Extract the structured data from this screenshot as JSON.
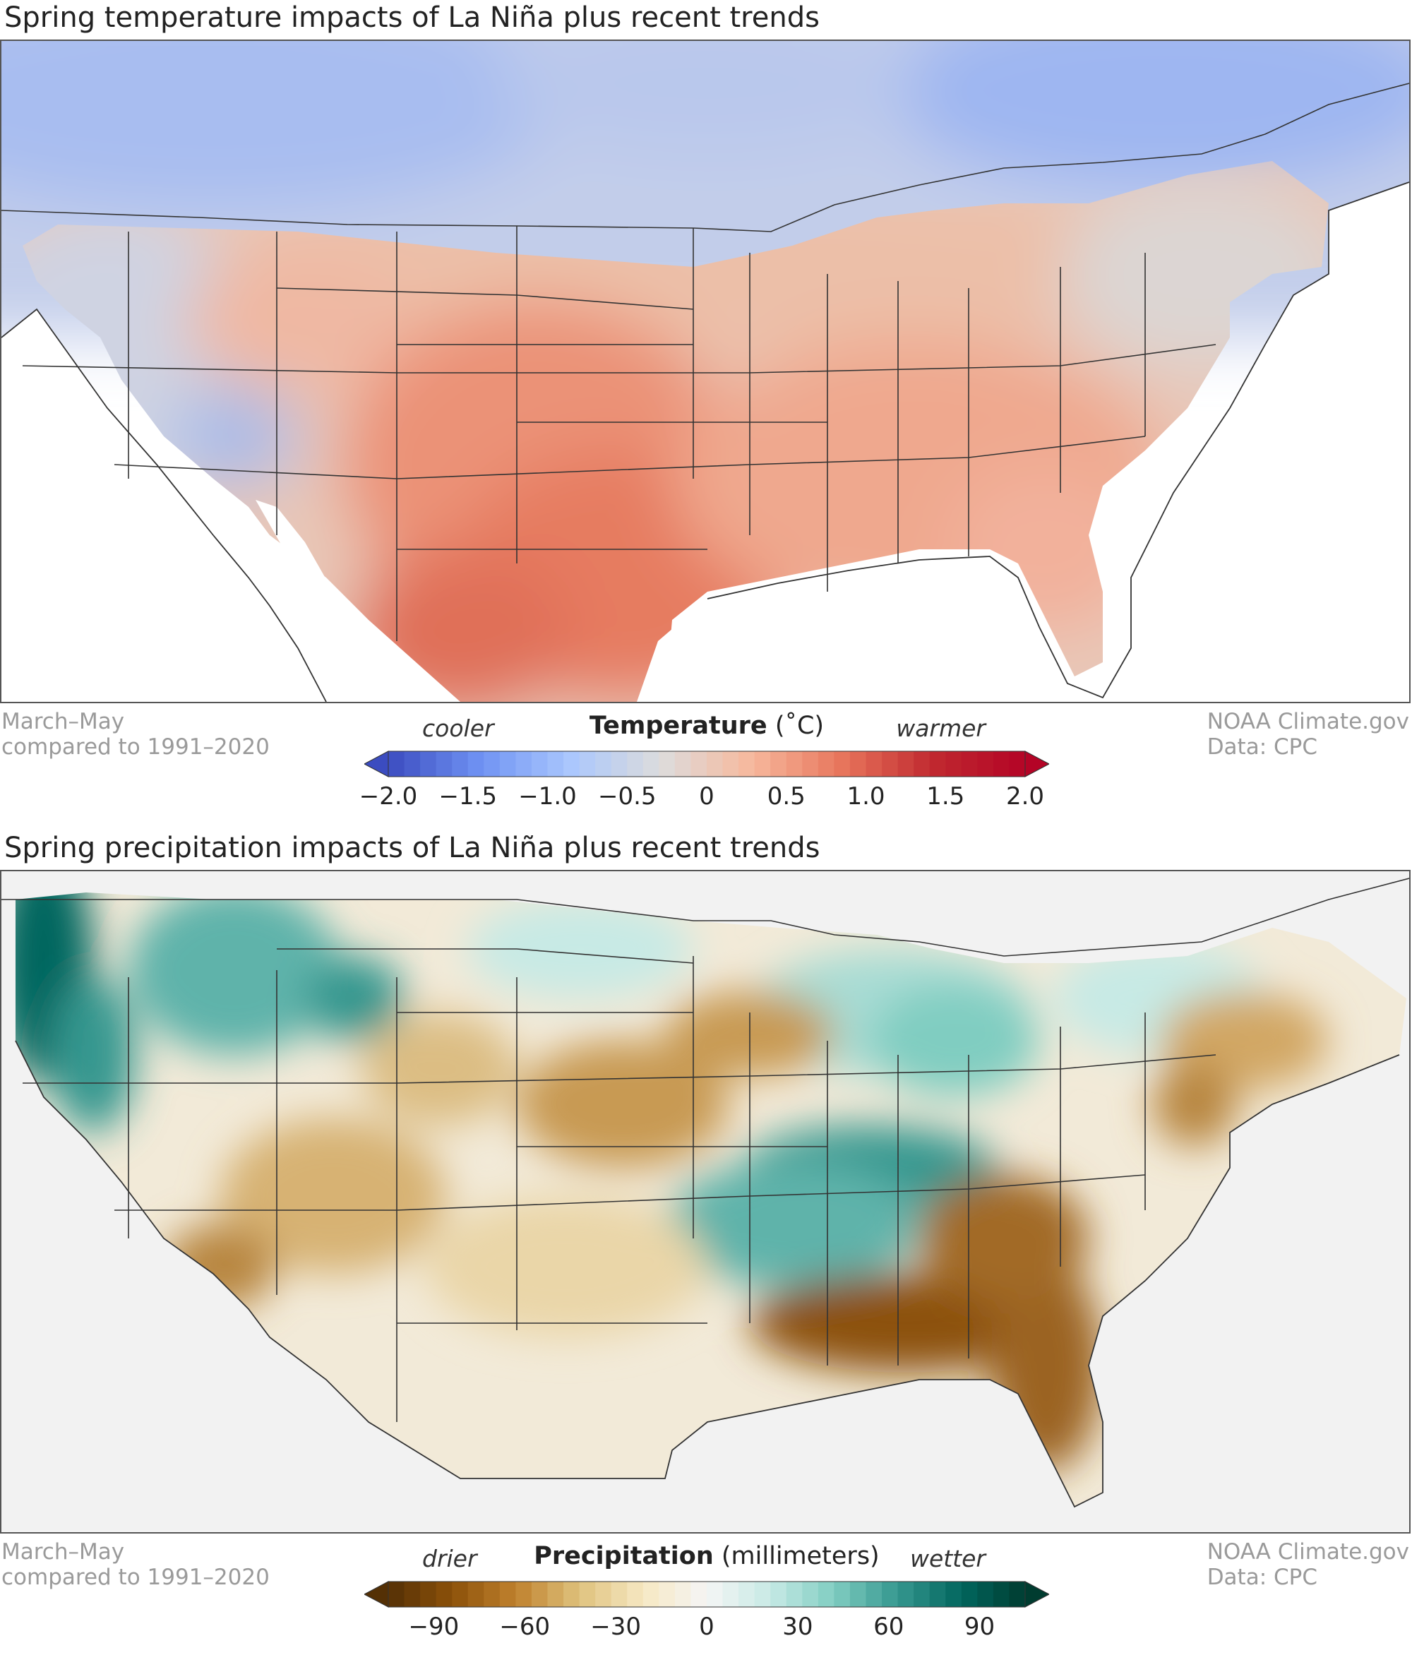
{
  "temperature_map": {
    "title": "Spring temperature impacts of La Niña plus recent trends",
    "period": "March–May",
    "baseline": "compared to 1991–2020",
    "credit": "NOAA Climate.gov",
    "source": "Data: CPC",
    "legend": {
      "title": "Temperature",
      "unit": "(˚C)",
      "low_label": "cooler",
      "high_label": "warmer",
      "ticks": [
        "−2.0",
        "−1.5",
        "−1.0",
        "−0.5",
        "0",
        "0.5",
        "1.0",
        "1.5",
        "2.0"
      ],
      "range": [
        -2.0,
        2.0
      ],
      "colors": [
        "#3b4cc0",
        "#6f92f3",
        "#aac7fd",
        "#dddcdc",
        "#f7b89c",
        "#e7745b",
        "#c0282f",
        "#b40426"
      ]
    }
  },
  "precipitation_map": {
    "title": "Spring precipitation impacts of La Niña plus recent trends",
    "period": "March–May",
    "baseline": "compared to 1991–2020",
    "credit": "NOAA Climate.gov",
    "source": "Data: CPC",
    "legend": {
      "title": "Precipitation",
      "unit": "(millimeters)",
      "low_label": "drier",
      "high_label": "wetter",
      "ticks": [
        "−90",
        "−60",
        "−30",
        "0",
        "30",
        "60",
        "90"
      ],
      "range": [
        -105,
        105
      ],
      "colors": [
        "#543005",
        "#8c510a",
        "#bf812d",
        "#dfc27d",
        "#f6e8c3",
        "#f5f5f5",
        "#c7eae5",
        "#80cdc1",
        "#35978f",
        "#01665e",
        "#003c30"
      ]
    }
  }
}
